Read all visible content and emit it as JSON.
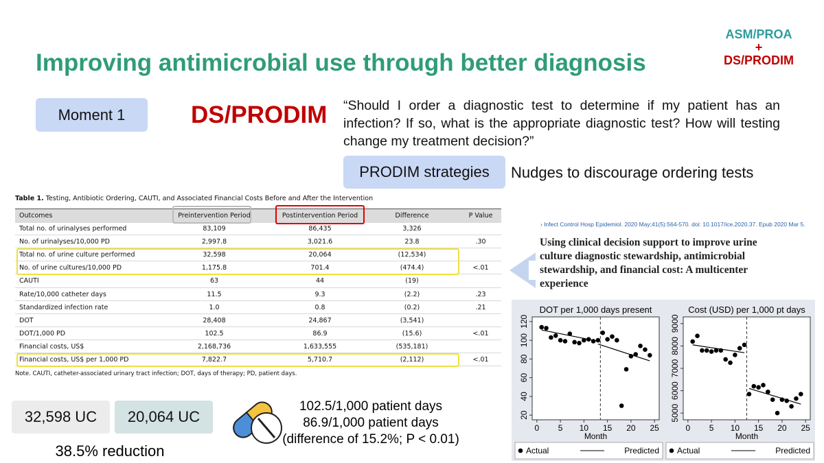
{
  "title": "Improving antimicrobial use through better diagnosis",
  "badge": [
    "ASM/PROA",
    "+",
    "DS/PRODIM"
  ],
  "moment": "Moment 1",
  "framework": "DS/PRODIM",
  "quote": "“Should I order a diagnostic test to determine if my patient has an infection? If so, what is the appropriate diagnostic test? How will testing change my treatment decision?”",
  "strategies_label": "PRODIM strategies",
  "strategy": "Nudges to discourage ordering tests",
  "table": {
    "caption_label": "Table 1.",
    "caption": "Testing, Antibiotic Ordering, CAUTI, and Associated Financial Costs Before and After the Intervention",
    "header": [
      "Outcomes",
      "Preintervention Period",
      "Postintervention Period",
      "Difference",
      "P Value"
    ],
    "rows": [
      [
        "Total no. of urinalyses performed",
        "83,109",
        "86,435",
        "3,326",
        null
      ],
      [
        "No. of urinalyses/10,000 PD",
        "2,997.8",
        "3,021.6",
        "23.8",
        ".30"
      ],
      [
        "Total no. of urine culture performed",
        "32,598",
        "20,064",
        "(12,534)",
        null
      ],
      [
        "No. of urine cultures/10,000 PD",
        "1,175.8",
        "701.4",
        "(474.4)",
        "<.01"
      ],
      [
        "CAUTI",
        "63",
        "44",
        "(19)",
        null
      ],
      [
        "Rate/10,000 catheter days",
        "11.5",
        "9.3",
        "(2.2)",
        ".23"
      ],
      [
        "Standardized infection rate",
        "1.0",
        "0.8",
        "(0.2)",
        ".21"
      ],
      [
        "DOT",
        "28,408",
        "24,867",
        "(3,541)",
        null
      ],
      [
        "DOT/1,000 PD",
        "102.5",
        "86.9",
        "(15.6)",
        "<.01"
      ],
      [
        "Financial costs, US$",
        "2,168,736",
        "1,633,555",
        "(535,181)",
        null
      ],
      [
        "Financial costs, US$ per 1,000 PD",
        "7,822.7",
        "5,710.7",
        "(2,112)",
        "<.01"
      ]
    ],
    "note": "Note. CAUTI, catheter-associated urinary tract infection; DOT, days of therapy; PD, patient days."
  },
  "stats": {
    "pre": "32,598 UC",
    "post": "20,064 UC",
    "reduction": "38.5% reduction",
    "dot_lines": [
      "102.5/1,000 patient days",
      "86.9/1,000 patient days",
      "(difference of 15.2%; P < 0.01)"
    ]
  },
  "article": {
    "citation": "› Infect Control Hosp Epidemiol. 2020 May;41(5):564-570. doi: 10.1017/ice.2020.37. Epub 2020 Mar 5.",
    "title": "Using clinical decision support to improve urine culture diagnostic stewardship, antimicrobial stewardship, and financial cost: A multicenter experience"
  },
  "chart_data": [
    {
      "type": "scatter",
      "title": "DOT per 1,000 days present",
      "x_label": "Month",
      "x": [
        1,
        2,
        3,
        4,
        5,
        6,
        7,
        8,
        9,
        10,
        11,
        12,
        13,
        14,
        15,
        16,
        17,
        18,
        19,
        20,
        21,
        22,
        23,
        24
      ],
      "series": [
        {
          "name": "Actual",
          "color": "#000000",
          "values": [
            114,
            113,
            103,
            105,
            100,
            99,
            107,
            98,
            97,
            100,
            101,
            99,
            100,
            108,
            101,
            104,
            100,
            30,
            69,
            83,
            85,
            94,
            90,
            84
          ]
        },
        {
          "name": "Predicted",
          "color": "#000000",
          "x": [
            1,
            13,
            null,
            13,
            24
          ],
          "values": [
            111,
            99,
            null,
            96,
            78
          ]
        }
      ],
      "vline": 13.5,
      "xlim": [
        -1,
        26
      ],
      "ylim": [
        15,
        125
      ],
      "xticks": [
        0,
        5,
        10,
        15,
        20,
        25
      ],
      "yticks": [
        20,
        40,
        60,
        80,
        100,
        120
      ]
    },
    {
      "type": "scatter",
      "title": "Cost (USD) per 1,000 pt days",
      "x_label": "Month",
      "x": [
        1,
        2,
        3,
        4,
        5,
        6,
        7,
        8,
        9,
        10,
        11,
        12,
        13,
        14,
        15,
        16,
        17,
        18,
        19,
        20,
        21,
        22,
        23,
        24
      ],
      "series": [
        {
          "name": "Actual",
          "color": "#000000",
          "values": [
            8200,
            8450,
            7800,
            7800,
            7750,
            7800,
            7800,
            7400,
            7250,
            7600,
            7900,
            8050,
            5850,
            6200,
            6150,
            6250,
            5950,
            5600,
            5000,
            5600,
            5550,
            5300,
            5650,
            5850
          ]
        },
        {
          "name": "Predicted",
          "color": "#000000",
          "x": [
            1,
            12,
            null,
            13,
            24
          ],
          "values": [
            8050,
            7700,
            null,
            6100,
            5400
          ]
        }
      ],
      "vline": 12.5,
      "xlim": [
        -1,
        26
      ],
      "ylim": [
        4700,
        9300
      ],
      "xticks": [
        0,
        5,
        10,
        15,
        20,
        25
      ],
      "yticks": [
        5000,
        6000,
        7000,
        8000,
        9000
      ]
    }
  ]
}
